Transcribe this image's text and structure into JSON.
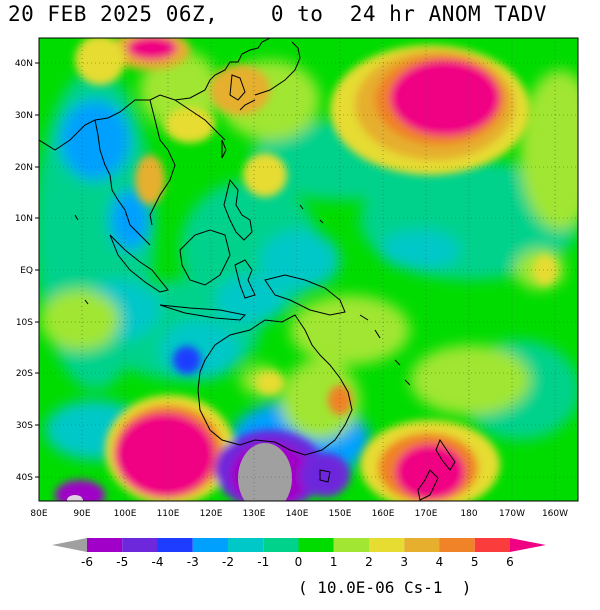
{
  "title": "20 FEB 2025 06Z,    0 to  24 hr ANOM TADV",
  "units": "( 10.0E-06 Cs-1  )",
  "lat_labels": [
    "40N",
    "30N",
    "20N",
    "10N",
    "EQ",
    "10S",
    "20S",
    "30S",
    "40S"
  ],
  "lon_labels": [
    "80E",
    "90E",
    "100E",
    "110E",
    "120E",
    "130E",
    "140E",
    "150E",
    "160E",
    "170E",
    "180",
    "170W",
    "160W"
  ],
  "colorbar": {
    "labels": [
      "-6",
      "-5",
      "-4",
      "-3",
      "-2",
      "-1",
      "0",
      "1",
      "2",
      "3",
      "4",
      "5",
      "6"
    ],
    "colors": [
      "#a0a0a0",
      "#a000c8",
      "#6e28dc",
      "#1e3cff",
      "#00a0ff",
      "#00c8c8",
      "#00d28c",
      "#00dc00",
      "#a0e632",
      "#e6dc32",
      "#e6af2d",
      "#f08228",
      "#fa3c3c",
      "#f00082"
    ]
  },
  "field": {
    "variable": "Temperature advection anomaly",
    "valid": "20 FEB 2025 06Z",
    "forecast": "0 to 24 hr",
    "notable_regions": [
      {
        "name": "strong positive anomaly east of Japan",
        "value": 6
      },
      {
        "name": "strong positive anomaly south-west of Australia",
        "value": 6
      },
      {
        "name": "strong positive anomaly east of New Zealand",
        "value": 6
      },
      {
        "name": "strong negative anomaly south of Australia",
        "value": -6
      },
      {
        "name": "negative anomaly over Indian Ocean near 20S 110E",
        "value": -4
      }
    ]
  }
}
